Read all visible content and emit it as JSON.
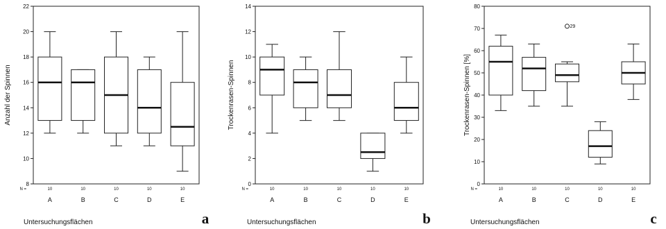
{
  "chart_data": [
    {
      "type": "box",
      "panel_label": "a",
      "ylabel": "Anzahl der Spinnen",
      "xlabel": "Untersuchungsflächen",
      "n_label": "N =",
      "ylim": [
        8,
        22
      ],
      "yticks": [
        8,
        10,
        12,
        14,
        16,
        18,
        20,
        22
      ],
      "categories": [
        "A",
        "B",
        "C",
        "D",
        "E"
      ],
      "n": [
        "10",
        "10",
        "10",
        "10",
        "10"
      ],
      "boxes": [
        {
          "min": 12,
          "q1": 13,
          "median": 16,
          "q3": 18,
          "max": 20
        },
        {
          "min": 12,
          "q1": 13,
          "median": 16,
          "q3": 17,
          "max": 17
        },
        {
          "min": 11,
          "q1": 12,
          "median": 15,
          "q3": 18,
          "max": 20
        },
        {
          "min": 11,
          "q1": 12,
          "median": 14,
          "q3": 17,
          "max": 18
        },
        {
          "min": 9,
          "q1": 11,
          "median": 12.5,
          "q3": 16,
          "max": 20
        }
      ],
      "outliers": []
    },
    {
      "type": "box",
      "panel_label": "b",
      "ylabel": "Trockenrasen-Spinnen",
      "xlabel": "Untersuchungsflächen",
      "n_label": "N =",
      "ylim": [
        0,
        14
      ],
      "yticks": [
        0,
        2,
        4,
        6,
        8,
        10,
        12,
        14
      ],
      "categories": [
        "A",
        "B",
        "C",
        "D",
        "E"
      ],
      "n": [
        "10",
        "10",
        "10",
        "10",
        "10"
      ],
      "boxes": [
        {
          "min": 4,
          "q1": 7,
          "median": 9,
          "q3": 10,
          "max": 11
        },
        {
          "min": 5,
          "q1": 6,
          "median": 8,
          "q3": 9,
          "max": 10
        },
        {
          "min": 5,
          "q1": 6,
          "median": 7,
          "q3": 9,
          "max": 12
        },
        {
          "min": 1,
          "q1": 2,
          "median": 2.5,
          "q3": 4,
          "max": 4
        },
        {
          "min": 4,
          "q1": 5,
          "median": 6,
          "q3": 8,
          "max": 10
        }
      ],
      "outliers": []
    },
    {
      "type": "box",
      "panel_label": "c",
      "ylabel": "Trockenrasen-Spinnen [%]",
      "xlabel": "Untersuchungsflächen",
      "n_label": "N =",
      "ylim": [
        0,
        80
      ],
      "yticks": [
        0,
        10,
        20,
        30,
        40,
        50,
        60,
        70,
        80
      ],
      "categories": [
        "A",
        "B",
        "C",
        "D",
        "E"
      ],
      "n": [
        "10",
        "10",
        "10",
        "10",
        "10"
      ],
      "boxes": [
        {
          "min": 33,
          "q1": 40,
          "median": 55,
          "q3": 62,
          "max": 67
        },
        {
          "min": 35,
          "q1": 42,
          "median": 52,
          "q3": 57,
          "max": 63
        },
        {
          "min": 35,
          "q1": 46,
          "median": 49,
          "q3": 54,
          "max": 55
        },
        {
          "min": 9,
          "q1": 12,
          "median": 17,
          "q3": 24,
          "max": 28
        },
        {
          "min": 38,
          "q1": 45,
          "median": 50,
          "q3": 55,
          "max": 63
        }
      ],
      "outliers": [
        {
          "category": "C",
          "value": 71,
          "label": "29"
        }
      ]
    }
  ]
}
